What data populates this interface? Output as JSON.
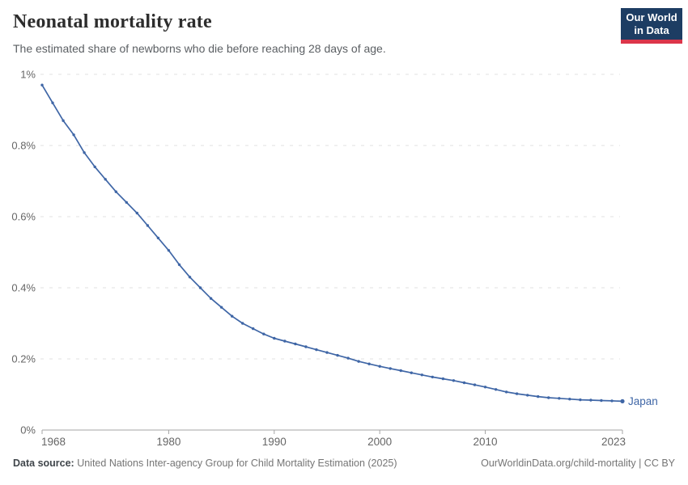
{
  "header": {
    "title": "Neonatal mortality rate",
    "subtitle": "The estimated share of newborns who die before reaching 28 days of age.",
    "logo": {
      "line1": "Our World",
      "line2": "in Data"
    }
  },
  "footer": {
    "datasource_label": "Data source:",
    "datasource_text": " United Nations Inter-agency Group for Child Mortality Estimation (2025)",
    "link": "OurWorldinData.org/child-mortality",
    "separator": " | ",
    "license": "CC BY"
  },
  "colors": {
    "series_blue": "#3f66a6",
    "grid_gray": "#e2e2e2",
    "axis_gray": "#a5a5a5",
    "tick_label_gray": "#666666",
    "logo_navy": "#1d3d63",
    "logo_red": "#dc354a"
  },
  "chart_data": {
    "type": "line",
    "title": "Neonatal mortality rate",
    "xlabel": "",
    "ylabel": "",
    "grid": "horizontal-dashed",
    "legend_position": "end-of-line-label",
    "xlim": [
      1968,
      2023
    ],
    "ylim": [
      0,
      1
    ],
    "x_ticks": [
      1968,
      1980,
      1990,
      2000,
      2010,
      2023
    ],
    "y_ticks": [
      {
        "value": 0.0,
        "label": "0%"
      },
      {
        "value": 0.2,
        "label": "0.2%"
      },
      {
        "value": 0.4,
        "label": "0.4%"
      },
      {
        "value": 0.6,
        "label": "0.6%"
      },
      {
        "value": 0.8,
        "label": "0.8%"
      },
      {
        "value": 1.0,
        "label": "1%"
      }
    ],
    "series": [
      {
        "name": "Japan",
        "end_label": "Japan",
        "color": "#3f66a6",
        "x": [
          1968,
          1969,
          1970,
          1971,
          1972,
          1973,
          1974,
          1975,
          1976,
          1977,
          1978,
          1979,
          1980,
          1981,
          1982,
          1983,
          1984,
          1985,
          1986,
          1987,
          1988,
          1989,
          1990,
          1991,
          1992,
          1993,
          1994,
          1995,
          1996,
          1997,
          1998,
          1999,
          2000,
          2001,
          2002,
          2003,
          2004,
          2005,
          2006,
          2007,
          2008,
          2009,
          2010,
          2011,
          2012,
          2013,
          2014,
          2015,
          2016,
          2017,
          2018,
          2019,
          2020,
          2021,
          2022,
          2023
        ],
        "y": [
          0.97,
          0.92,
          0.87,
          0.83,
          0.78,
          0.74,
          0.705,
          0.67,
          0.64,
          0.61,
          0.575,
          0.54,
          0.505,
          0.465,
          0.43,
          0.4,
          0.37,
          0.345,
          0.32,
          0.3,
          0.285,
          0.27,
          0.258,
          0.25,
          0.242,
          0.234,
          0.226,
          0.218,
          0.21,
          0.202,
          0.193,
          0.186,
          0.179,
          0.173,
          0.167,
          0.161,
          0.155,
          0.149,
          0.144,
          0.139,
          0.133,
          0.127,
          0.121,
          0.114,
          0.107,
          0.102,
          0.098,
          0.094,
          0.091,
          0.089,
          0.087,
          0.085,
          0.084,
          0.083,
          0.082,
          0.081
        ],
        "unit": "%"
      }
    ]
  }
}
